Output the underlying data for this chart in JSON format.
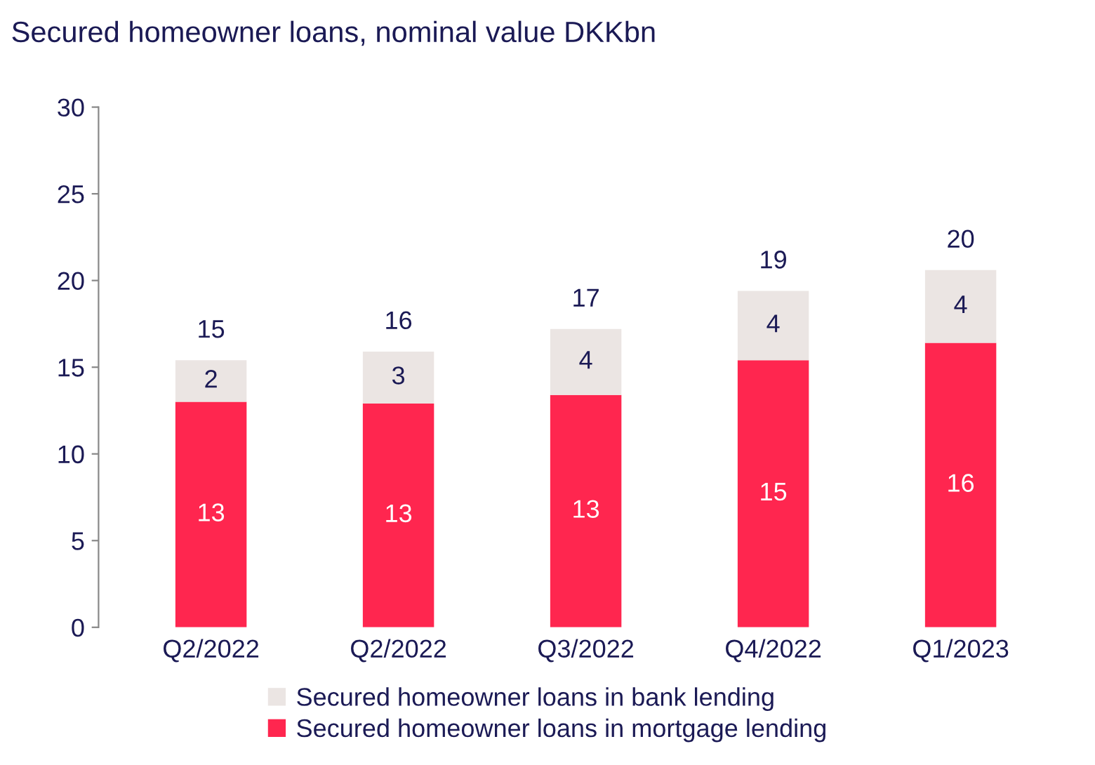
{
  "chart_data": {
    "type": "bar",
    "stacked": true,
    "title": "Secured homeowner loans, nominal value DKKbn",
    "categories": [
      "Q2/2022",
      "Q2/2022",
      "Q3/2022",
      "Q4/2022",
      "Q1/2023"
    ],
    "series": [
      {
        "name": "Secured homeowner loans in mortgage lending",
        "color": "#ff264f",
        "values": [
          13.0,
          12.9,
          13.4,
          15.4,
          16.4
        ],
        "value_labels": [
          "13",
          "13",
          "13",
          "15",
          "16"
        ]
      },
      {
        "name": "Secured homeowner loans in bank lending",
        "color": "#ebe5e3",
        "values": [
          2.4,
          3.0,
          3.8,
          4.0,
          4.2
        ],
        "value_labels": [
          "2",
          "3",
          "4",
          "4",
          "4"
        ]
      }
    ],
    "totals": [
      "15",
      "16",
      "17",
      "19",
      "20"
    ],
    "ylim": [
      0,
      30
    ],
    "yticks": [
      0,
      5,
      10,
      15,
      20,
      25,
      30
    ],
    "grid": false,
    "legend": "bottom"
  }
}
